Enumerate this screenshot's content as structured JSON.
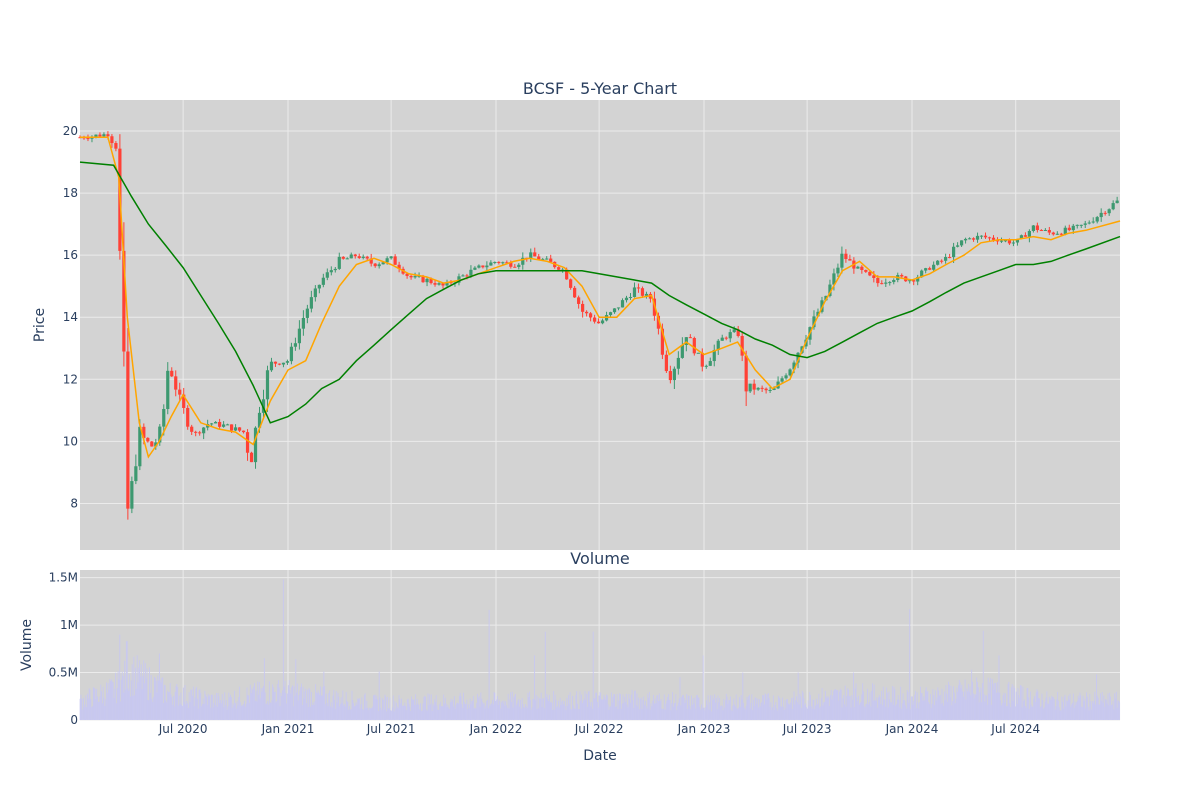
{
  "colors": {
    "plot_bg": "#d3d3d3",
    "grid": "#ebebeb",
    "increasing": "#3d9970",
    "decreasing": "#ff4136",
    "ma_short": "#ffa500",
    "ma_long": "#008000",
    "volume": "#c8c8f0",
    "text": "#2a3f5f"
  },
  "chart_data": [
    {
      "type": "candlestick",
      "title": "BCSF - 5-Year Chart",
      "ylabel": "Price",
      "xlabel": "",
      "ylim": [
        6.5,
        21.0
      ],
      "yticks": [
        8,
        10,
        12,
        14,
        16,
        18,
        20
      ],
      "x_range": [
        "2020-01-02",
        "2024-12-31"
      ],
      "grid": true,
      "series": [
        {
          "kind": "ohlc",
          "approx_close_path": {
            "dates": [
              "2020-01-02",
              "2020-02-20",
              "2020-03-05",
              "2020-03-18",
              "2020-03-23",
              "2020-04-15",
              "2020-05-10",
              "2020-05-25",
              "2020-06-05",
              "2020-07-01",
              "2020-07-20",
              "2020-08-15",
              "2020-09-15",
              "2020-10-15",
              "2020-10-28",
              "2020-11-10",
              "2020-12-01",
              "2021-01-01",
              "2021-02-01",
              "2021-03-01",
              "2021-04-01",
              "2021-05-01",
              "2021-06-01",
              "2021-07-01",
              "2021-08-01",
              "2021-09-01",
              "2021-10-01",
              "2021-11-01",
              "2021-12-01",
              "2022-01-01",
              "2022-02-01",
              "2022-03-01",
              "2022-04-01",
              "2022-05-01",
              "2022-06-01",
              "2022-07-01",
              "2022-08-01",
              "2022-09-01",
              "2022-10-01",
              "2022-11-01",
              "2022-12-01",
              "2023-01-01",
              "2023-02-01",
              "2023-03-01",
              "2023-03-15",
              "2023-04-01",
              "2023-05-01",
              "2023-06-01",
              "2023-07-01",
              "2023-08-01",
              "2023-09-01",
              "2023-10-01",
              "2023-11-01",
              "2023-12-01",
              "2024-01-01",
              "2024-02-01",
              "2024-03-01",
              "2024-04-01",
              "2024-05-01",
              "2024-06-01",
              "2024-07-01",
              "2024-08-01",
              "2024-09-01",
              "2024-10-01",
              "2024-11-01",
              "2024-12-31"
            ],
            "close": [
              19.8,
              19.9,
              19.5,
              12.5,
              7.3,
              10.2,
              9.8,
              10.5,
              12.5,
              11.0,
              10.2,
              10.6,
              10.5,
              10.3,
              9.3,
              11.0,
              12.5,
              12.6,
              14.2,
              15.2,
              15.8,
              16.0,
              15.7,
              15.9,
              15.3,
              15.2,
              15.0,
              15.3,
              15.6,
              15.8,
              15.7,
              16.0,
              15.8,
              15.5,
              14.2,
              13.8,
              14.3,
              14.9,
              14.6,
              12.0,
              13.5,
              12.4,
              13.3,
              13.6,
              11.8,
              11.7,
              11.6,
              12.4,
              13.5,
              14.6,
              16.0,
              15.5,
              15.1,
              15.3,
              15.2,
              15.6,
              15.9,
              16.5,
              16.6,
              16.5,
              16.4,
              16.9,
              16.7,
              16.8,
              17.0,
              17.8
            ]
          }
        },
        {
          "kind": "moving_average_short",
          "dates": [
            "2020-01-02",
            "2020-02-20",
            "2020-03-10",
            "2020-03-25",
            "2020-04-15",
            "2020-05-01",
            "2020-05-20",
            "2020-06-10",
            "2020-07-01",
            "2020-08-01",
            "2020-09-01",
            "2020-10-01",
            "2020-11-01",
            "2020-12-01",
            "2021-01-01",
            "2021-02-01",
            "2021-03-01",
            "2021-04-01",
            "2021-05-01",
            "2021-06-01",
            "2021-07-01",
            "2021-08-01",
            "2021-09-01",
            "2021-10-01",
            "2021-11-01",
            "2021-12-01",
            "2022-01-01",
            "2022-02-01",
            "2022-03-01",
            "2022-04-01",
            "2022-05-01",
            "2022-06-01",
            "2022-07-01",
            "2022-08-01",
            "2022-09-01",
            "2022-10-01",
            "2022-11-01",
            "2022-12-01",
            "2023-01-01",
            "2023-02-01",
            "2023-03-01",
            "2023-04-01",
            "2023-05-01",
            "2023-06-01",
            "2023-07-01",
            "2023-08-01",
            "2023-09-01",
            "2023-10-01",
            "2023-11-01",
            "2023-12-01",
            "2024-01-01",
            "2024-02-01",
            "2024-03-01",
            "2024-04-01",
            "2024-05-01",
            "2024-06-01",
            "2024-07-01",
            "2024-08-01",
            "2024-09-01",
            "2024-10-01",
            "2024-11-01",
            "2024-12-31"
          ],
          "values": [
            19.8,
            19.8,
            18.5,
            14.0,
            10.6,
            9.5,
            10.0,
            10.8,
            11.5,
            10.6,
            10.4,
            10.3,
            9.9,
            11.3,
            12.3,
            12.6,
            13.8,
            15.0,
            15.7,
            15.9,
            15.7,
            15.4,
            15.3,
            15.1,
            15.2,
            15.4,
            15.6,
            15.8,
            15.9,
            15.8,
            15.6,
            15.0,
            14.0,
            14.0,
            14.6,
            14.7,
            12.8,
            13.2,
            12.8,
            13.0,
            13.2,
            12.3,
            11.7,
            12.0,
            13.3,
            14.5,
            15.5,
            15.8,
            15.3,
            15.3,
            15.2,
            15.4,
            15.7,
            16.0,
            16.4,
            16.5,
            16.5,
            16.6,
            16.5,
            16.7,
            16.8,
            17.1
          ]
        },
        {
          "kind": "moving_average_long",
          "dates": [
            "2020-01-02",
            "2020-03-01",
            "2020-04-01",
            "2020-05-01",
            "2020-06-01",
            "2020-07-01",
            "2020-08-01",
            "2020-09-01",
            "2020-10-01",
            "2020-11-01",
            "2020-12-01",
            "2021-01-01",
            "2021-02-01",
            "2021-03-01",
            "2021-04-01",
            "2021-05-01",
            "2021-06-01",
            "2021-07-01",
            "2021-08-01",
            "2021-09-01",
            "2021-10-01",
            "2021-11-01",
            "2021-12-01",
            "2022-01-01",
            "2022-02-01",
            "2022-03-01",
            "2022-04-01",
            "2022-05-01",
            "2022-06-01",
            "2022-07-01",
            "2022-08-01",
            "2022-09-01",
            "2022-10-01",
            "2022-11-01",
            "2022-12-01",
            "2023-01-01",
            "2023-02-01",
            "2023-03-01",
            "2023-04-01",
            "2023-05-01",
            "2023-06-01",
            "2023-07-01",
            "2023-08-01",
            "2023-09-01",
            "2023-10-01",
            "2023-11-01",
            "2023-12-01",
            "2024-01-01",
            "2024-02-01",
            "2024-03-01",
            "2024-04-01",
            "2024-05-01",
            "2024-06-01",
            "2024-07-01",
            "2024-08-01",
            "2024-09-01",
            "2024-10-01",
            "2024-11-01",
            "2024-12-31"
          ],
          "values": [
            19.0,
            18.9,
            17.9,
            17.0,
            16.3,
            15.6,
            14.7,
            13.8,
            12.9,
            11.8,
            10.6,
            10.8,
            11.2,
            11.7,
            12.0,
            12.6,
            13.1,
            13.6,
            14.1,
            14.6,
            14.9,
            15.2,
            15.4,
            15.5,
            15.5,
            15.5,
            15.5,
            15.5,
            15.5,
            15.4,
            15.3,
            15.2,
            15.1,
            14.7,
            14.4,
            14.1,
            13.8,
            13.6,
            13.3,
            13.1,
            12.8,
            12.7,
            12.9,
            13.2,
            13.5,
            13.8,
            14.0,
            14.2,
            14.5,
            14.8,
            15.1,
            15.3,
            15.5,
            15.7,
            15.7,
            15.8,
            16.0,
            16.2,
            16.6
          ]
        }
      ]
    },
    {
      "type": "bar",
      "title": "Volume",
      "xlabel": "Date",
      "ylabel": "Volume",
      "ylim": [
        0,
        1580000
      ],
      "yticks": [
        0,
        500000,
        1000000,
        1500000
      ],
      "ytick_labels": [
        "0",
        "0.5M",
        "1M",
        "1.5M"
      ],
      "x_range": [
        "2020-01-02",
        "2024-12-31"
      ],
      "xticks": [
        "2020-07-01",
        "2021-01-01",
        "2021-07-01",
        "2022-01-01",
        "2022-07-01",
        "2023-01-01",
        "2023-07-01",
        "2024-01-01",
        "2024-07-01"
      ],
      "xtick_labels": [
        "Jul 2020",
        "Jan 2021",
        "Jul 2021",
        "Jan 2022",
        "Jul 2022",
        "Jan 2023",
        "Jul 2023",
        "Jan 2024",
        "Jul 2024"
      ],
      "grid": true,
      "base_volume_path": {
        "dates": [
          "2020-01-02",
          "2020-03-01",
          "2020-04-01",
          "2020-06-01",
          "2020-09-01",
          "2020-12-01",
          "2021-01-01",
          "2021-06-01",
          "2022-01-01",
          "2022-06-01",
          "2022-09-01",
          "2023-01-01",
          "2023-06-01",
          "2023-10-01",
          "2024-01-01",
          "2024-05-01",
          "2024-09-01",
          "2024-12-31"
        ],
        "values": [
          220000,
          350000,
          550000,
          320000,
          220000,
          330000,
          320000,
          200000,
          220000,
          230000,
          240000,
          200000,
          220000,
          300000,
          250000,
          350000,
          220000,
          220000
        ]
      },
      "spikes": [
        {
          "date": "2020-03-12",
          "value": 900000
        },
        {
          "date": "2020-03-24",
          "value": 830000
        },
        {
          "date": "2020-05-20",
          "value": 700000
        },
        {
          "date": "2020-11-20",
          "value": 650000
        },
        {
          "date": "2020-12-24",
          "value": 1480000
        },
        {
          "date": "2021-01-15",
          "value": 640000
        },
        {
          "date": "2021-03-05",
          "value": 510000
        },
        {
          "date": "2021-06-10",
          "value": 510000
        },
        {
          "date": "2021-12-20",
          "value": 1160000
        },
        {
          "date": "2022-03-10",
          "value": 680000
        },
        {
          "date": "2022-03-28",
          "value": 930000
        },
        {
          "date": "2022-06-20",
          "value": 930000
        },
        {
          "date": "2022-11-20",
          "value": 450000
        },
        {
          "date": "2022-12-30",
          "value": 680000
        },
        {
          "date": "2023-03-10",
          "value": 500000
        },
        {
          "date": "2023-06-15",
          "value": 500000
        },
        {
          "date": "2023-09-20",
          "value": 500000
        },
        {
          "date": "2023-12-28",
          "value": 1170000
        },
        {
          "date": "2024-04-15",
          "value": 530000
        },
        {
          "date": "2024-05-05",
          "value": 940000
        },
        {
          "date": "2024-06-01",
          "value": 680000
        },
        {
          "date": "2024-11-20",
          "value": 480000
        }
      ]
    }
  ]
}
